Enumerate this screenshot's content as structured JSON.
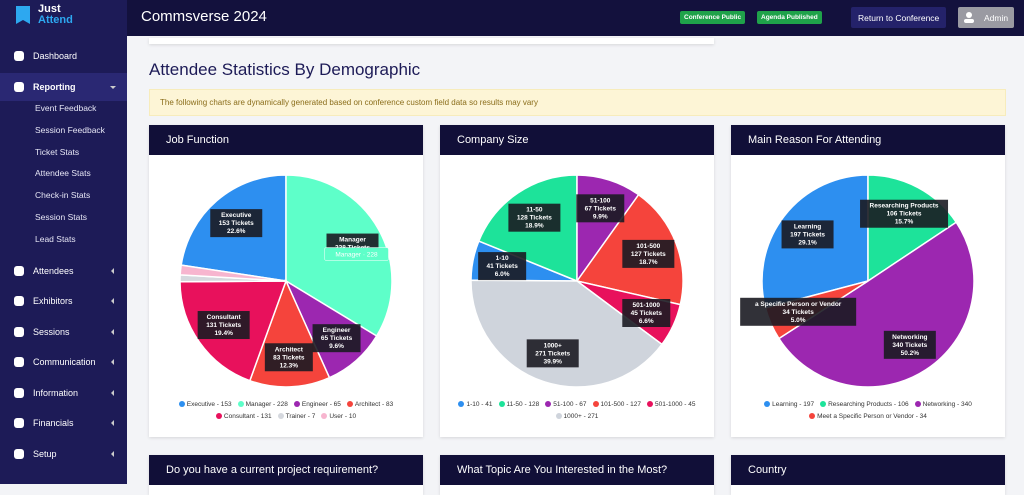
{
  "sidebar": {
    "logo": [
      "Just",
      "Attend"
    ],
    "menu": [
      {
        "label": "Dashboard"
      },
      {
        "label": "Reporting",
        "items": [
          "Event Feedback",
          "Session Feedback",
          "Ticket Stats",
          "Attendee Stats",
          "Check-in Stats",
          "Session Stats",
          "Lead Stats"
        ]
      },
      {
        "label": "Attendees"
      },
      {
        "label": "Exhibitors"
      },
      {
        "label": "Sessions"
      },
      {
        "label": "Communication"
      },
      {
        "label": "Information"
      },
      {
        "label": "Financials"
      },
      {
        "label": "Setup"
      }
    ]
  },
  "topbar": {
    "title": "Commsverse 2024",
    "badges": [
      "Conference Public",
      "Agenda Published"
    ],
    "button": "Return to Conference",
    "user": "Admin"
  },
  "page": {
    "heading": "Attendee Statistics By Demographic",
    "notice": "The following charts are dynamically generated based on conference custom field data so results may vary"
  },
  "charts": [
    {
      "type": "pie",
      "title": "Job Function",
      "slices": [
        {
          "name": "Executive",
          "value": 153,
          "color": "#2d8ff0",
          "legend": "Executive - 153",
          "label": [
            "Executive",
            "153 Tickets",
            "22.6%"
          ]
        },
        {
          "name": "Manager",
          "value": 228,
          "color": "#5effc9",
          "legend": "Manager - 228",
          "label": [
            "Manager",
            "228 Tickets"
          ],
          "tooltip": "Manager · 228"
        },
        {
          "name": "Engineer",
          "value": 65,
          "color": "#9c27b0",
          "legend": "Engineer - 65",
          "label": [
            "Engineer",
            "65 Tickets",
            "9.6%"
          ]
        },
        {
          "name": "Architect",
          "value": 83,
          "color": "#f5443c",
          "legend": "Architect - 83",
          "label": [
            "Architect",
            "83 Tickets",
            "12.3%"
          ]
        },
        {
          "name": "Consultant",
          "value": 131,
          "color": "#e8115c",
          "legend": "Consultant - 131",
          "label": [
            "Consultant",
            "131 Tickets",
            "19.4%"
          ]
        },
        {
          "name": "Trainer",
          "value": 7,
          "color": "#d5d8de",
          "legend": "Trainer - 7"
        },
        {
          "name": "User",
          "value": 10,
          "color": "#f7b5cf",
          "legend": "User - 10"
        }
      ]
    },
    {
      "type": "pie",
      "title": "Company Size",
      "slices": [
        {
          "name": "1-10",
          "value": 41,
          "color": "#2d8ff0",
          "legend": "1-10 - 41",
          "label": [
            "1-10",
            "41 Tickets",
            "6.0%"
          ]
        },
        {
          "name": "11-50",
          "value": 128,
          "color": "#1de39a",
          "legend": "11-50 - 128",
          "label": [
            "11-50",
            "128 Tickets",
            "18.9%"
          ]
        },
        {
          "name": "51-100",
          "value": 67,
          "color": "#9c27b0",
          "legend": "51-100 - 67",
          "label": [
            "51-100",
            "67 Tickets",
            "9.9%"
          ]
        },
        {
          "name": "101-500",
          "value": 127,
          "color": "#f5443c",
          "legend": "101-500 - 127",
          "label": [
            "101-500",
            "127 Tickets",
            "18.7%"
          ]
        },
        {
          "name": "501-1000",
          "value": 45,
          "color": "#e8115c",
          "legend": "501-1000 - 45",
          "label": [
            "501-1000",
            "45 Tickets",
            "6.6%"
          ]
        },
        {
          "name": "1000+",
          "value": 271,
          "color": "#cfd4dc",
          "legend": "1000+ - 271",
          "label": [
            "1000+",
            "271 Tickets",
            "39.9%"
          ]
        }
      ]
    },
    {
      "type": "pie",
      "title": "Main Reason For Attending",
      "slices": [
        {
          "name": "Learning",
          "value": 197,
          "color": "#2d8ff0",
          "legend": "Learning - 197",
          "label": [
            "Learning",
            "197 Tickets",
            "29.1%"
          ]
        },
        {
          "name": "Researching Products",
          "value": 106,
          "color": "#1de39a",
          "legend": "Researching Products - 106",
          "label": [
            "Researching Products",
            "106 Tickets",
            "15.7%"
          ]
        },
        {
          "name": "Networking",
          "value": 340,
          "color": "#9c27b0",
          "legend": "Networking - 340",
          "label": [
            "Networking",
            "340 Tickets",
            "50.2%"
          ]
        },
        {
          "name": "Meet a Specific Person or Vendor",
          "value": 34,
          "color": "#f5443c",
          "legend": "Meet a Specific Person or Vendor - 34",
          "label": [
            "a Specific Person or Vendor",
            "34 Tickets",
            "5.0%"
          ]
        }
      ]
    }
  ],
  "bottom_cards": [
    "Do you have a current project requirement?",
    "What Topic Are You Interested in the Most?",
    "Country"
  ]
}
